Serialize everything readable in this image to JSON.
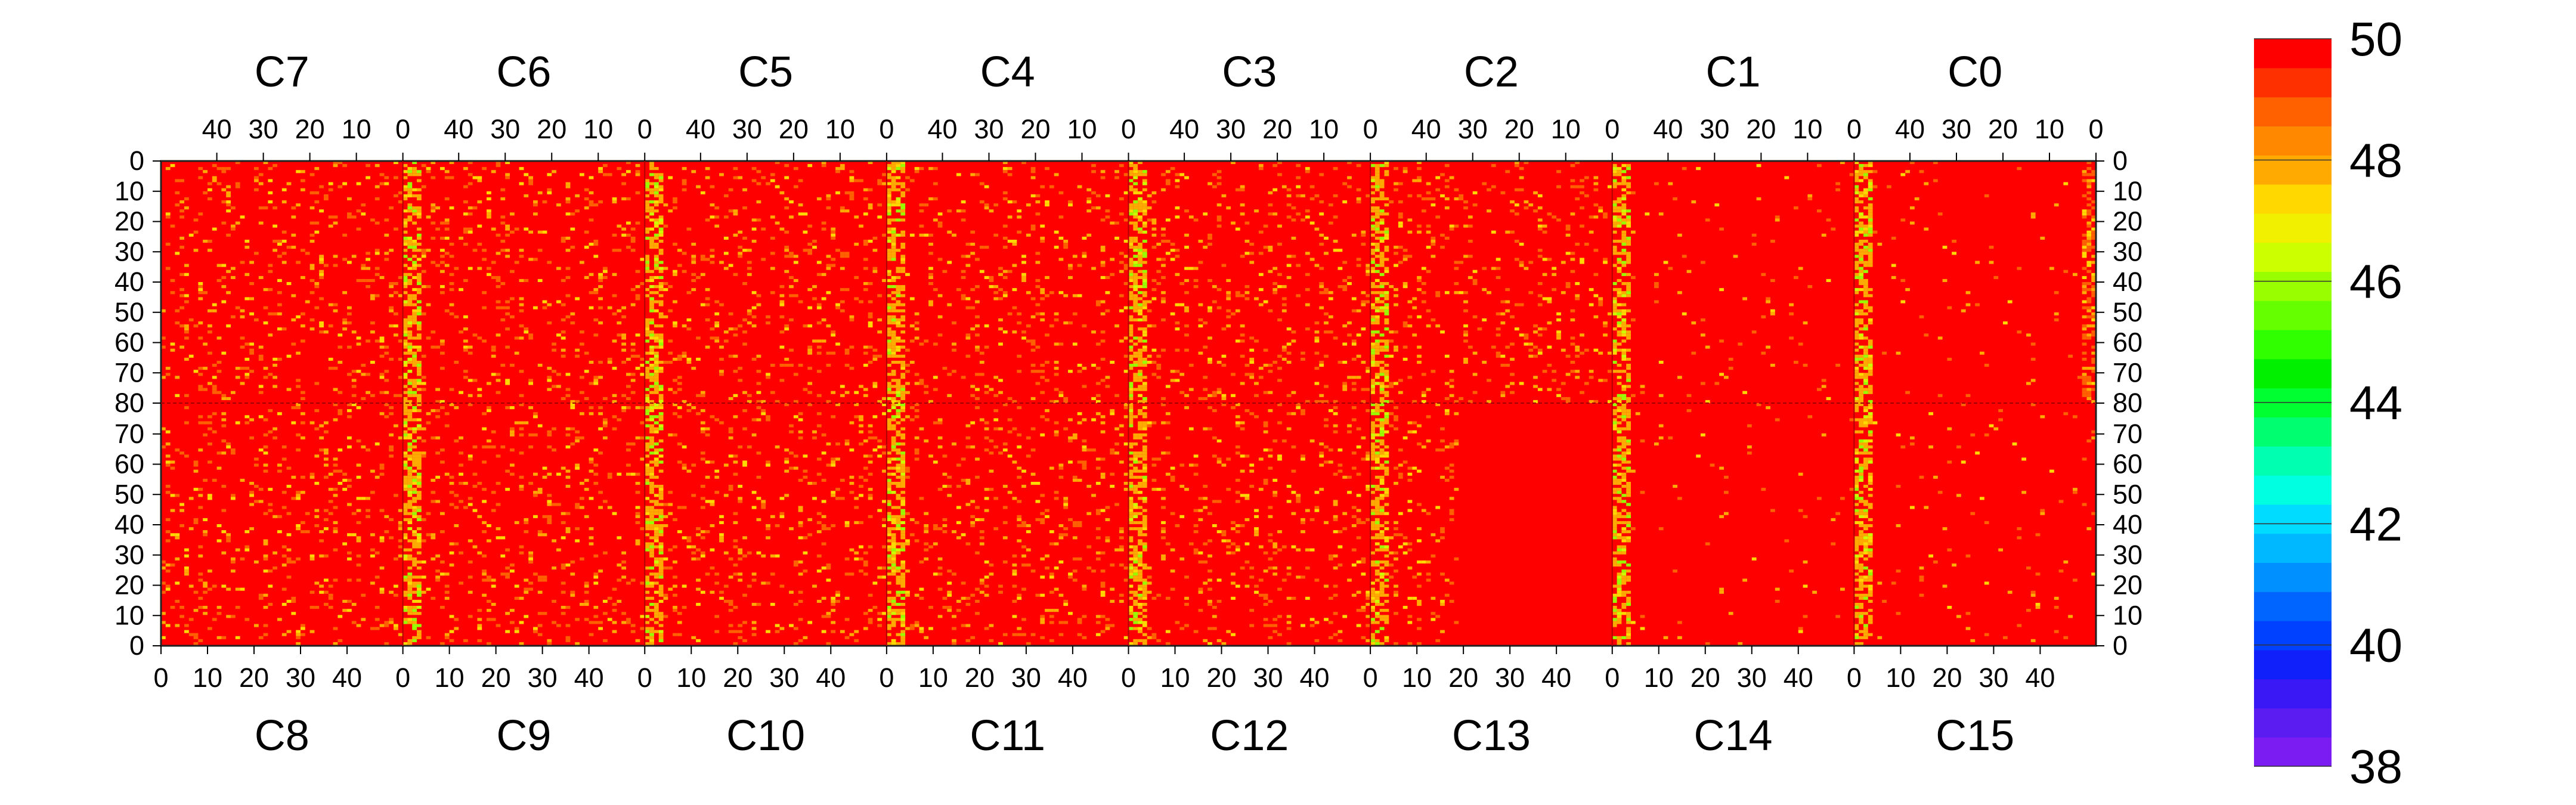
{
  "chart_data": {
    "type": "heatmap",
    "title": "",
    "xlabel": "",
    "ylabel": "",
    "top_modules": [
      "C7",
      "C6",
      "C5",
      "C4",
      "C3",
      "C2",
      "C1",
      "C0"
    ],
    "bottom_modules": [
      "C8",
      "C9",
      "C10",
      "C11",
      "C12",
      "C13",
      "C14",
      "C15"
    ],
    "columns_per_module": 52,
    "rows_per_half": 80,
    "top_x_ticks": [
      40,
      30,
      20,
      10,
      0
    ],
    "bottom_x_ticks": [
      0,
      10,
      20,
      30,
      40
    ],
    "y_ticks_top_half": [
      0,
      10,
      20,
      30,
      40,
      50,
      60,
      70,
      80
    ],
    "y_ticks_bottom_half": [
      70,
      60,
      50,
      40,
      30,
      20,
      10,
      0
    ],
    "zlim": [
      38,
      50
    ],
    "colorbar_labels": [
      50,
      48,
      46,
      44,
      42,
      40,
      38
    ],
    "colorbar_colors": [
      "#7a1cf2",
      "#5a1cf0",
      "#3a18f5",
      "#1020fa",
      "#0040ff",
      "#0064ff",
      "#0090ff",
      "#00b8ff",
      "#00dcff",
      "#00ffe0",
      "#00ffb0",
      "#00ff70",
      "#00ff30",
      "#00f000",
      "#30ff00",
      "#66ff00",
      "#99ff00",
      "#ccff00",
      "#f0f000",
      "#ffd800",
      "#ffaa00",
      "#ff8800",
      "#ff6000",
      "#ff3000",
      "#ff0000"
    ],
    "dominant_value": 50,
    "module_edge_value": 46,
    "grid": false,
    "legend": "colorbar-right"
  }
}
